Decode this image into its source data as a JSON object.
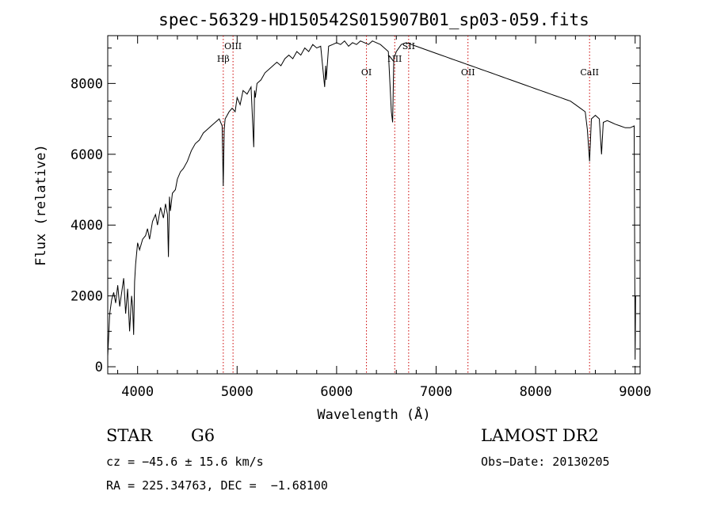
{
  "chart_data": {
    "type": "line",
    "title": "spec-56329-HD150542S015907B01_sp03-059.fits",
    "xlabel": "Wavelength (Å)",
    "ylabel": "Flux (relative)",
    "xlim": [
      3700,
      9050
    ],
    "ylim": [
      -200,
      9350
    ],
    "xticks": [
      4000,
      5000,
      6000,
      7000,
      8000,
      9000
    ],
    "yticks": [
      0,
      2000,
      4000,
      6000,
      8000
    ],
    "grid": false,
    "series": [
      {
        "x": [
          3700,
          3720,
          3740,
          3760,
          3780,
          3800,
          3820,
          3840,
          3860,
          3880,
          3900,
          3920,
          3940,
          3950,
          3960,
          3970,
          3980,
          4000,
          4020,
          4050,
          4080,
          4100,
          4120,
          4150,
          4180,
          4200,
          4230,
          4260,
          4280,
          4300,
          4310,
          4320,
          4330,
          4350,
          4380,
          4400,
          4430,
          4460,
          4500,
          4540,
          4580,
          4620,
          4660,
          4700,
          4740,
          4780,
          4820,
          4850,
          4861,
          4870,
          4880,
          4900,
          4920,
          4950,
          4980,
          5000,
          5030,
          5060,
          5100,
          5140,
          5167,
          5175,
          5183,
          5200,
          5240,
          5280,
          5320,
          5360,
          5400,
          5440,
          5480,
          5520,
          5560,
          5600,
          5640,
          5680,
          5720,
          5760,
          5800,
          5840,
          5880,
          5890,
          5896,
          5920,
          5960,
          6000,
          6040,
          6080,
          6120,
          6160,
          6200,
          6240,
          6280,
          6320,
          6360,
          6400,
          6440,
          6480,
          6520,
          6550,
          6563,
          6575,
          6600,
          6650,
          6700,
          6750,
          6800,
          6850,
          6900,
          6950,
          7000,
          7050,
          7100,
          7150,
          7200,
          7250,
          7300,
          7350,
          7400,
          7450,
          7500,
          7550,
          7600,
          7650,
          7700,
          7750,
          7800,
          7850,
          7900,
          7950,
          8000,
          8050,
          8100,
          8150,
          8200,
          8250,
          8300,
          8350,
          8400,
          8450,
          8498,
          8520,
          8542,
          8560,
          8600,
          8640,
          8662,
          8680,
          8720,
          8760,
          8800,
          8850,
          8900,
          8950,
          8990,
          9000,
          9005
        ],
        "y": [
          300,
          1500,
          1900,
          2100,
          1800,
          2300,
          1700,
          2100,
          2500,
          1500,
          2200,
          1000,
          2000,
          1700,
          900,
          2400,
          2900,
          3500,
          3300,
          3600,
          3700,
          3900,
          3600,
          4100,
          4300,
          4000,
          4500,
          4200,
          4600,
          4300,
          3100,
          4800,
          4400,
          4900,
          5000,
          5300,
          5500,
          5600,
          5800,
          6100,
          6300,
          6400,
          6600,
          6700,
          6800,
          6900,
          7000,
          6800,
          5100,
          6700,
          7000,
          7100,
          7200,
          7300,
          7200,
          7600,
          7400,
          7800,
          7700,
          7900,
          6200,
          7800,
          7600,
          8000,
          8100,
          8300,
          8400,
          8500,
          8600,
          8500,
          8700,
          8800,
          8700,
          8900,
          8800,
          9000,
          8900,
          9100,
          9000,
          9050,
          7900,
          8500,
          8100,
          9050,
          9100,
          9150,
          9100,
          9200,
          9050,
          9150,
          9100,
          9200,
          9150,
          9100,
          9200,
          9150,
          9100,
          9000,
          8900,
          7200,
          6900,
          8700,
          8900,
          9100,
          9150,
          9100,
          9050,
          9000,
          8950,
          8900,
          8850,
          8800,
          8750,
          8700,
          8650,
          8600,
          8550,
          8500,
          8450,
          8400,
          8350,
          8300,
          8250,
          8200,
          8150,
          8100,
          8050,
          8000,
          7950,
          7900,
          7850,
          7800,
          7750,
          7700,
          7650,
          7600,
          7550,
          7500,
          7400,
          7300,
          7200,
          6700,
          5800,
          7000,
          7100,
          7000,
          6000,
          6900,
          6950,
          6900,
          6850,
          6800,
          6750,
          6750,
          6800,
          200,
          2000
        ]
      }
    ],
    "annotations": [
      {
        "label": "Hβ",
        "x": 4861,
        "level": "upper"
      },
      {
        "label": "OIII",
        "x": 4959,
        "level": "top"
      },
      {
        "label": "OI",
        "x": 6300,
        "level": "lower"
      },
      {
        "label": "NII",
        "x": 6584,
        "level": "upper"
      },
      {
        "label": "OII",
        "x": 7320,
        "level": "lower"
      },
      {
        "label": "SII",
        "x": 6724,
        "level": "top"
      },
      {
        "label": "CaII",
        "x": 8542,
        "level": "lower"
      }
    ],
    "line_color": "#000000",
    "marker_color": "#cc0000"
  },
  "info": {
    "object_type": "STAR",
    "subclass": "G6",
    "survey": "LAMOST DR2",
    "cz_line": "cz = −45.6 ± 15.6 km/s",
    "obs_date": "Obs−Date: 20130205",
    "coords": "RA = 225.34763, DEC =  −1.68100"
  }
}
